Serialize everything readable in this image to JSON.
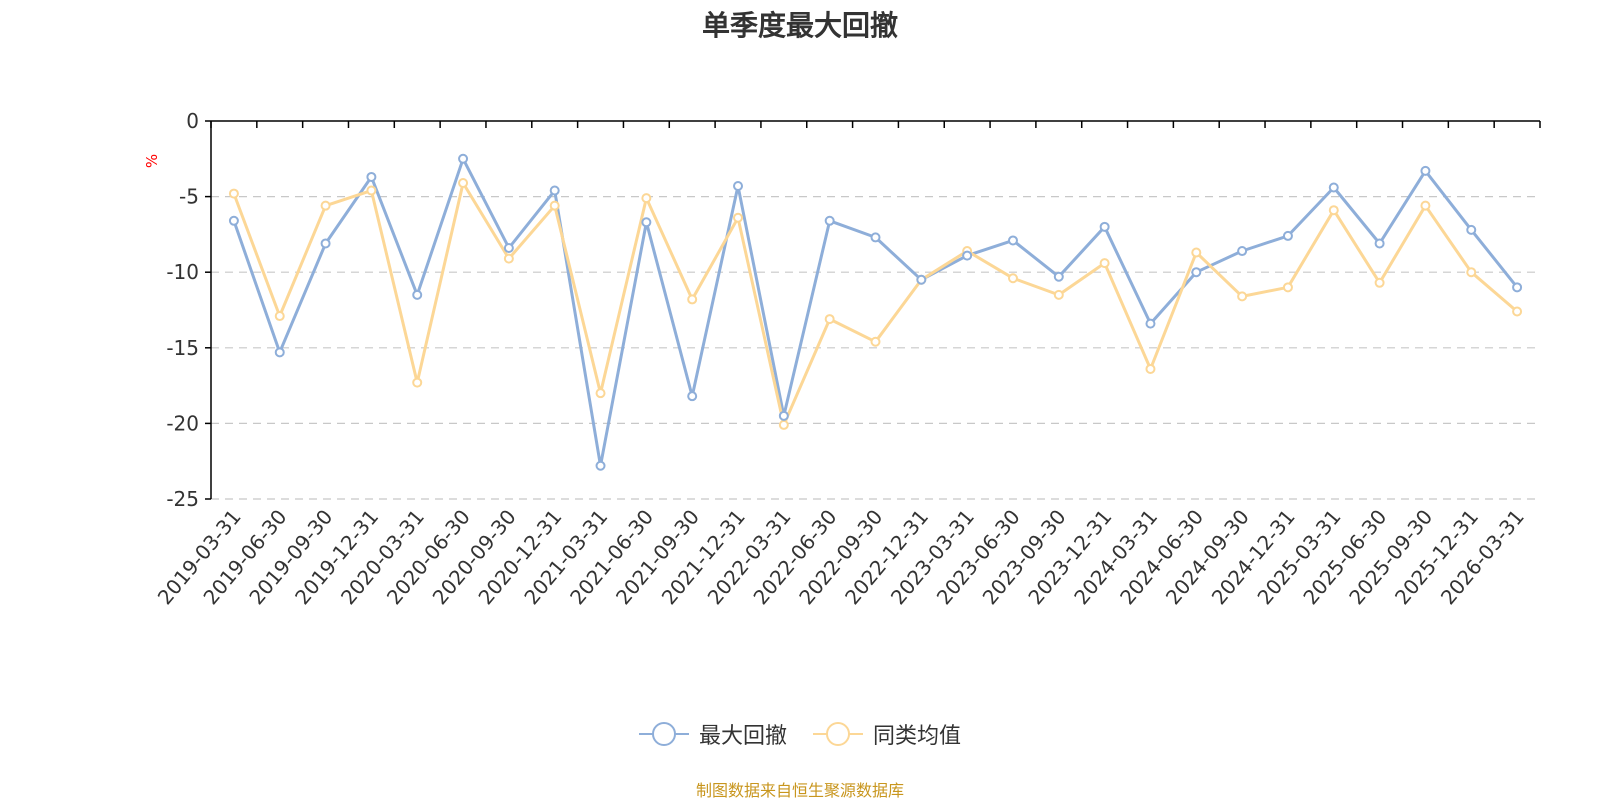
{
  "title": "单季度最大回撤",
  "unit": "%",
  "footer": "制图数据来自恒生聚源数据库",
  "colors": {
    "series1": "#8eaed9",
    "series2": "#fcd796",
    "grid": "#c8c8c8",
    "axis": "#000000"
  },
  "chart_data": {
    "type": "line",
    "title": "单季度最大回撤",
    "ylabel": "%",
    "ylim": [
      -25,
      0
    ],
    "yticks": [
      0,
      -5,
      -10,
      -15,
      -20,
      -25
    ],
    "grid": true,
    "legend_position": "bottom-center",
    "categories": [
      "2019-03-31",
      "2019-06-30",
      "2019-09-30",
      "2019-12-31",
      "2020-03-31",
      "2020-06-30",
      "2020-09-30",
      "2020-12-31",
      "2021-03-31",
      "2021-06-30",
      "2021-09-30",
      "2021-12-31",
      "2022-03-31",
      "2022-06-30",
      "2022-09-30",
      "2022-12-31",
      "2023-03-31",
      "2023-06-30",
      "2023-09-30",
      "2023-12-31",
      "2024-03-31",
      "2024-06-30",
      "2024-09-30",
      "2024-12-31",
      "2025-03-31",
      "2025-06-30",
      "2025-09-30",
      "2025-12-31",
      "2026-03-31"
    ],
    "series": [
      {
        "name": "最大回撤",
        "values": [
          -6.6,
          -15.3,
          -8.1,
          -3.7,
          -11.5,
          -2.5,
          -8.4,
          -4.6,
          -22.8,
          -6.7,
          -18.2,
          -4.3,
          -19.5,
          -6.6,
          -7.7,
          -10.5,
          -8.9,
          -7.9,
          -10.3,
          -7.0,
          -13.4,
          -10.0,
          -8.6,
          -7.6,
          -4.4,
          -8.1,
          -3.3,
          -7.2,
          -11.0
        ]
      },
      {
        "name": "同类均值",
        "values": [
          -4.8,
          -12.9,
          -5.6,
          -4.6,
          -17.3,
          -4.1,
          -9.1,
          -5.6,
          -18.0,
          -5.1,
          -11.8,
          -6.4,
          -20.1,
          -13.1,
          -14.6,
          -10.5,
          -8.6,
          -10.4,
          -11.5,
          -9.4,
          -16.4,
          -8.7,
          -11.6,
          -11.0,
          -5.9,
          -10.7,
          -5.6,
          -10.0,
          -12.6
        ]
      }
    ]
  }
}
